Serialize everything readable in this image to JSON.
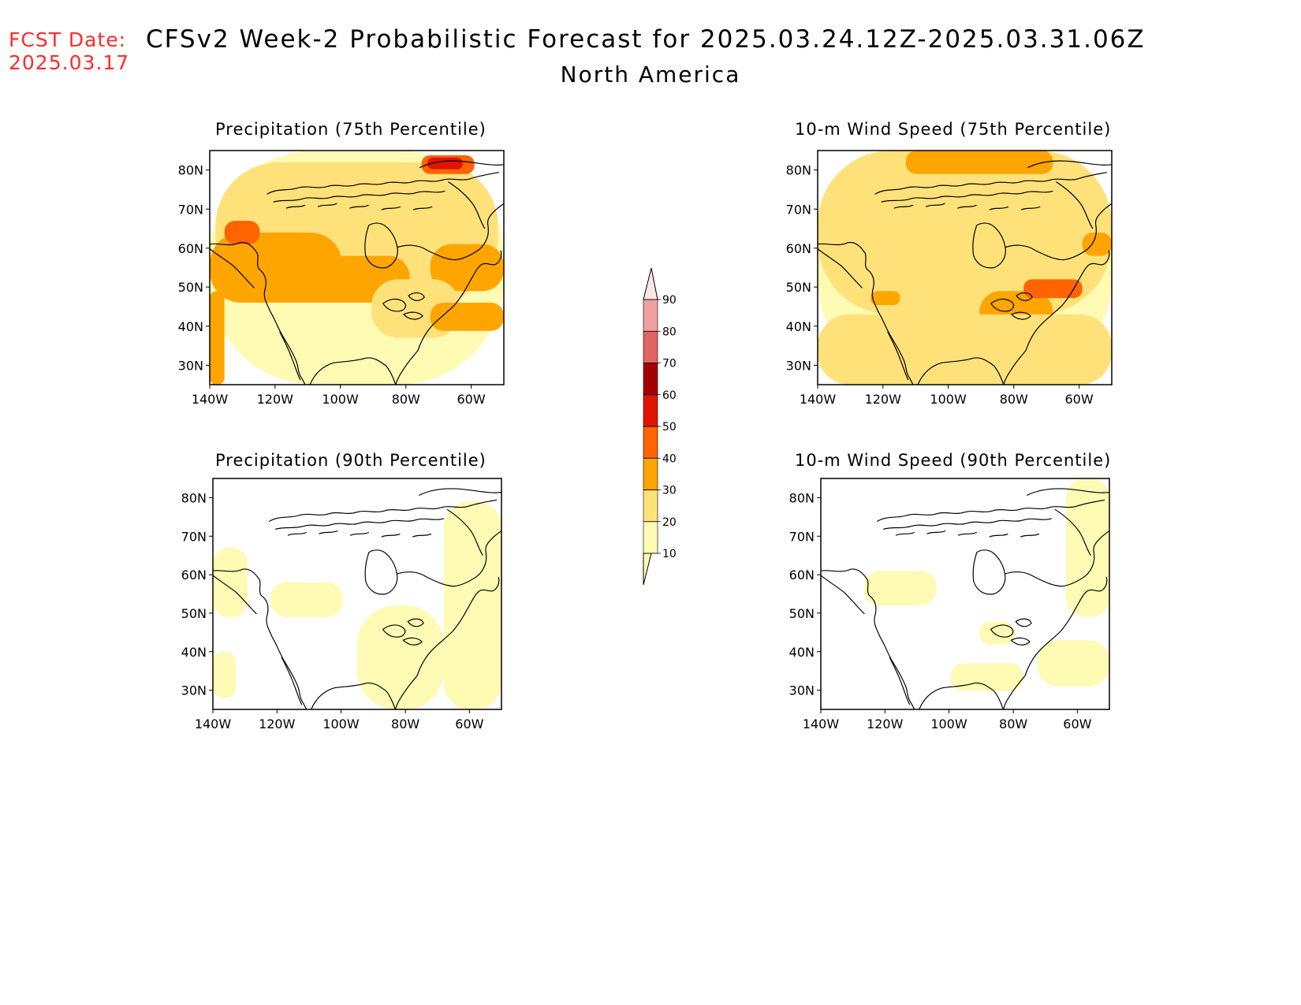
{
  "header": {
    "fcst_label": "FCST Date:",
    "fcst_date": "2025.03.17",
    "title": "CFSv2 Week-2 Probabilistic Forecast for 2025.03.24.12Z-2025.03.31.06Z",
    "subtitle": "North America"
  },
  "panels": [
    {
      "id": "precip75",
      "title": "Precipitation (75th Percentile)"
    },
    {
      "id": "wind75",
      "title": "10-m Wind Speed (75th Percentile)"
    },
    {
      "id": "precip90",
      "title": "Precipitation (90th Percentile)"
    },
    {
      "id": "wind90",
      "title": "10-m Wind Speed (90th Percentile)"
    }
  ],
  "axes": {
    "lon_labels": [
      "140W",
      "120W",
      "100W",
      "80W",
      "60W"
    ],
    "lat_labels": [
      "30N",
      "40N",
      "50N",
      "60N",
      "70N",
      "80N"
    ]
  },
  "colorbar": {
    "levels": [
      "10",
      "20",
      "30",
      "40",
      "50",
      "60",
      "70",
      "80",
      "90"
    ],
    "colors": [
      "#fffab4",
      "#ffe17a",
      "#ffa500",
      "#ff6400",
      "#e11400",
      "#a50000",
      "#e06464",
      "#f0a0a0",
      "#ffe6e6"
    ]
  }
}
